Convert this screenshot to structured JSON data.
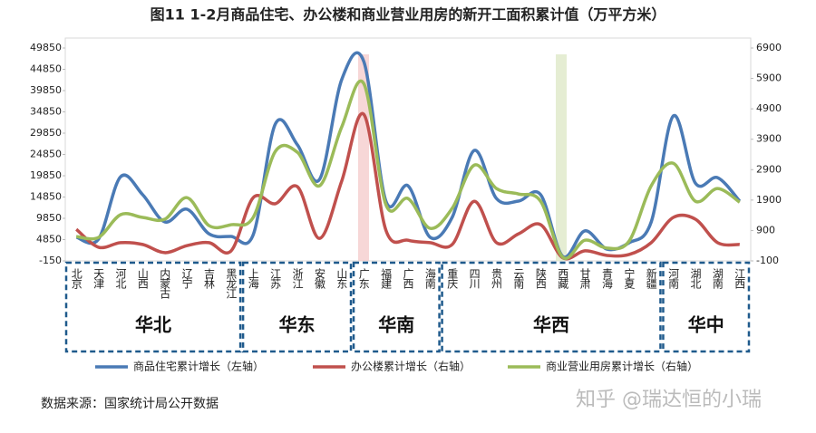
{
  "chart_data": {
    "type": "line",
    "title": "图11 1-2月商品住宅、办公楼和商业营业用房的新开工面积累计值（万平方米）",
    "categories": [
      "北京",
      "天津",
      "河北",
      "山西",
      "内蒙古",
      "辽宁",
      "吉林",
      "黑龙江",
      "上海",
      "江苏",
      "浙江",
      "安徽",
      "山东",
      "广东",
      "福建",
      "广西",
      "海南",
      "重庆",
      "四川",
      "贵州",
      "云南",
      "陕西",
      "西藏",
      "甘肃",
      "青海",
      "宁夏",
      "新疆",
      "河南",
      "湖北",
      "湖南",
      "江西"
    ],
    "groups": [
      {
        "name": "华北",
        "categories": [
          "北京",
          "天津",
          "河北",
          "山西",
          "内蒙古",
          "辽宁",
          "吉林",
          "黑龙江"
        ]
      },
      {
        "name": "华东",
        "categories": [
          "上海",
          "江苏",
          "浙江",
          "安徽",
          "山东"
        ]
      },
      {
        "name": "华南",
        "categories": [
          "广东",
          "福建",
          "广西",
          "海南"
        ]
      },
      {
        "name": "华西",
        "categories": [
          "重庆",
          "四川",
          "贵州",
          "云南",
          "陕西",
          "西藏",
          "甘肃",
          "青海",
          "宁夏",
          "新疆"
        ]
      },
      {
        "name": "华中",
        "categories": [
          "河南",
          "湖北",
          "湖南",
          "江西"
        ]
      }
    ],
    "series": [
      {
        "name": "商品住宅累计增长（左轴）",
        "color": "#4a7ab5",
        "axis": "y",
        "values": [
          5400,
          4950,
          19600,
          15400,
          9000,
          12000,
          6200,
          5600,
          6000,
          32000,
          27100,
          19000,
          42400,
          46700,
          13900,
          17500,
          5400,
          10100,
          25800,
          14500,
          13900,
          15400,
          900,
          6900,
          2600,
          4100,
          9000,
          33900,
          18100,
          19400,
          13900
        ]
      },
      {
        "name": "办公楼累计增长（右轴）",
        "color": "#c0504d",
        "axis": "y2",
        "values": [
          940,
          350,
          500,
          440,
          170,
          400,
          500,
          230,
          1980,
          1780,
          2340,
          640,
          2520,
          4720,
          910,
          580,
          500,
          440,
          1860,
          500,
          790,
          1090,
          0,
          230,
          80,
          110,
          500,
          1330,
          1270,
          500,
          440
        ]
      },
      {
        "name": "商业营业用房累计增长（右轴）",
        "color": "#9bbb59",
        "axis": "y2",
        "values": [
          700,
          670,
          1420,
          1330,
          1270,
          1980,
          1060,
          1090,
          1330,
          3500,
          3470,
          2370,
          4300,
          5730,
          1750,
          1950,
          970,
          1630,
          3050,
          2280,
          2100,
          1860,
          20,
          580,
          320,
          550,
          2370,
          3110,
          1860,
          2280,
          1830
        ]
      }
    ],
    "ylim": [
      -150,
      49850
    ],
    "yticks": [
      -150,
      4850,
      9850,
      14850,
      19850,
      24850,
      29850,
      34850,
      39850,
      44850,
      49850
    ],
    "y2lim": [
      -100,
      6900
    ],
    "y2ticks": [
      -100,
      900,
      1900,
      2900,
      3900,
      4900,
      5900,
      6900
    ],
    "grid": false,
    "legend": "bottom",
    "source": "数据来源：国家统计局公开数据",
    "watermark": "知乎 @瑞达恒的小瑞"
  }
}
